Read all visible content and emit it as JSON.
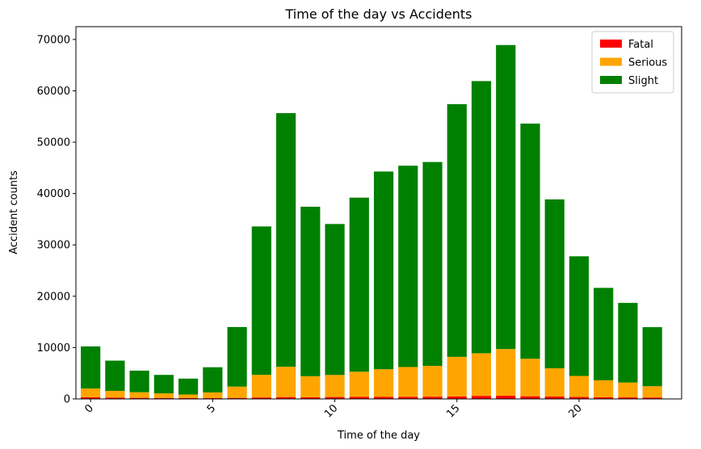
{
  "chart_data": {
    "type": "bar",
    "stacked": true,
    "title": "Time of the day vs Accidents",
    "xlabel": "Time of the day",
    "ylabel": "Accident counts",
    "x": [
      0,
      1,
      2,
      3,
      4,
      5,
      6,
      7,
      8,
      9,
      10,
      11,
      12,
      13,
      14,
      15,
      16,
      17,
      18,
      19,
      20,
      21,
      22,
      23
    ],
    "xlim": [
      -0.6,
      24.2
    ],
    "ylim": [
      0,
      72500
    ],
    "xticks": [
      0,
      5,
      10,
      15,
      20
    ],
    "xtick_rotation": -45,
    "yticks": [
      0,
      10000,
      20000,
      30000,
      40000,
      50000,
      60000,
      70000
    ],
    "series": [
      {
        "name": "Fatal",
        "color": "#ff0000",
        "values": [
          330,
          260,
          210,
          180,
          160,
          170,
          200,
          290,
          360,
          330,
          370,
          400,
          390,
          420,
          440,
          500,
          600,
          620,
          520,
          460,
          380,
          330,
          300,
          280
        ]
      },
      {
        "name": "Serious",
        "color": "#ffa500",
        "values": [
          1700,
          1300,
          1100,
          900,
          700,
          1100,
          2200,
          4400,
          5900,
          4100,
          4300,
          4900,
          5400,
          5800,
          6000,
          7700,
          8300,
          9100,
          7300,
          5500,
          4100,
          3300,
          2900,
          2200
        ]
      },
      {
        "name": "Slight",
        "color": "#008000",
        "values": [
          8200,
          5900,
          4200,
          3600,
          3100,
          4900,
          11600,
          28900,
          49400,
          33000,
          29400,
          33900,
          38500,
          39200,
          39700,
          49200,
          53000,
          59200,
          45800,
          32900,
          23300,
          18000,
          15500,
          11500
        ]
      }
    ],
    "legend": {
      "position": "top-right",
      "entries": [
        "Fatal",
        "Serious",
        "Slight"
      ]
    },
    "grid": false
  }
}
